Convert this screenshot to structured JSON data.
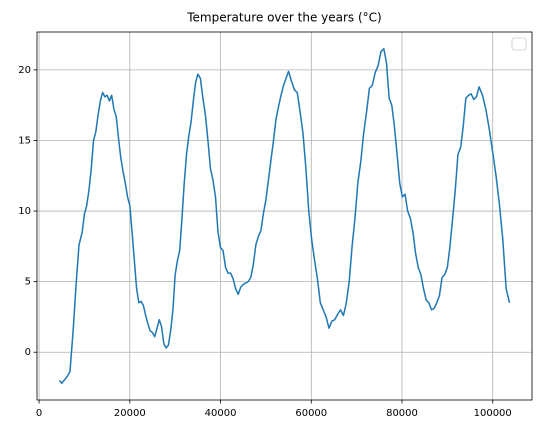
{
  "chart_data": {
    "type": "line",
    "title": "Temperature over the years (°C)",
    "x": [
      4500,
      5000,
      6000,
      6800,
      7500,
      8200,
      8800,
      9500,
      10000,
      10500,
      11000,
      11500,
      12000,
      12500,
      13000,
      13500,
      14000,
      14500,
      15000,
      15500,
      16000,
      16500,
      17000,
      17500,
      18000,
      18500,
      19000,
      19500,
      20000,
      20500,
      21000,
      21500,
      22000,
      22500,
      23000,
      23500,
      24000,
      24500,
      25000,
      25500,
      26000,
      26500,
      27000,
      27500,
      28000,
      28500,
      29000,
      29500,
      30000,
      30500,
      31000,
      31500,
      32000,
      32500,
      33000,
      33500,
      34000,
      34500,
      35000,
      35560,
      36110,
      36670,
      37220,
      37780,
      38330,
      38890,
      39440,
      40000,
      40560,
      41110,
      41670,
      42220,
      42780,
      43330,
      43890,
      44440,
      45000,
      45560,
      46110,
      46670,
      47220,
      47780,
      48330,
      48890,
      49440,
      50000,
      50560,
      51110,
      51670,
      52220,
      52780,
      53330,
      53890,
      54440,
      55000,
      55640,
      56270,
      56910,
      57550,
      58180,
      58820,
      59450,
      60090,
      60730,
      61360,
      62000,
      62640,
      63270,
      63910,
      64550,
      65180,
      65820,
      66450,
      67090,
      67730,
      68360,
      69000,
      69640,
      70270,
      70910,
      71550,
      72180,
      72820,
      73450,
      74090,
      74730,
      75360,
      76000,
      76580,
      77170,
      77750,
      78330,
      78920,
      79500,
      80080,
      80670,
      81250,
      81830,
      82420,
      83000,
      83580,
      84170,
      84750,
      85330,
      85920,
      86500,
      87080,
      87670,
      88250,
      88830,
      89420,
      90000,
      90580,
      91170,
      91750,
      92330,
      92920,
      93500,
      94080,
      94670,
      95250,
      95830,
      96420,
      97000,
      97750,
      98490,
      99240,
      99980,
      100730,
      101470,
      102220,
      102960,
      103700
    ],
    "series": [
      {
        "color": "#1f77b4",
        "values": [
          -2.0,
          -2.2,
          -1.8,
          -1.4,
          1.5,
          5,
          7.6,
          8.5,
          9.8,
          10.4,
          11.5,
          13,
          15,
          15.6,
          16.8,
          17.8,
          18.4,
          18.1,
          18.2,
          17.8,
          18.2,
          17.2,
          16.7,
          15.2,
          13.8,
          12.8,
          12,
          11,
          10.4,
          8.5,
          6.5,
          4.5,
          3.5,
          3.6,
          3.3,
          2.6,
          2,
          1.5,
          1.4,
          1.1,
          1.7,
          2.3,
          1.8,
          0.6,
          0.3,
          0.5,
          1.5,
          3,
          5.5,
          6.5,
          7.2,
          9.5,
          12,
          14,
          15.3,
          16.3,
          17.8,
          19.1,
          19.7,
          19.4,
          18,
          16.8,
          15,
          13,
          12.2,
          11,
          8.5,
          7.4,
          7.2,
          6,
          5.6,
          5.6,
          5.2,
          4.5,
          4.1,
          4.6,
          4.8,
          4.9,
          5,
          5.3,
          6.2,
          7.6,
          8.2,
          8.6,
          9.8,
          10.8,
          12.2,
          13.6,
          15,
          16.5,
          17.4,
          18.2,
          18.9,
          19.4,
          19.9,
          19.2,
          18.6,
          18.4,
          17,
          15.5,
          13,
          10,
          8,
          6.5,
          5.2,
          3.5,
          3,
          2.5,
          1.7,
          2.2,
          2.3,
          2.7,
          3,
          2.6,
          3.5,
          5,
          7.5,
          9.5,
          12,
          13.5,
          15.5,
          17,
          18.7,
          18.9,
          19.8,
          20.3,
          21.3,
          21.5,
          20.5,
          18,
          17.5,
          16,
          14,
          12,
          11,
          11.2,
          10,
          9.5,
          8.5,
          7,
          6,
          5.5,
          4.5,
          3.7,
          3.5,
          3,
          3.1,
          3.5,
          4,
          5.3,
          5.5,
          6,
          7.5,
          9.5,
          11.5,
          14,
          14.5,
          16,
          18,
          18.2,
          18.3,
          17.9,
          18.1,
          18.8,
          18.2,
          17.2,
          15.8,
          14.2,
          12.5,
          10.5,
          8,
          4.5,
          3.5
        ]
      }
    ],
    "xlim": [
      -460,
      108660
    ],
    "ylim": [
      -3.385,
      22.685
    ],
    "xticks": [
      0,
      20000,
      40000,
      60000,
      80000,
      100000
    ],
    "yticks": [
      0,
      5,
      10,
      15,
      20
    ],
    "grid": true,
    "legend": "upper right"
  }
}
